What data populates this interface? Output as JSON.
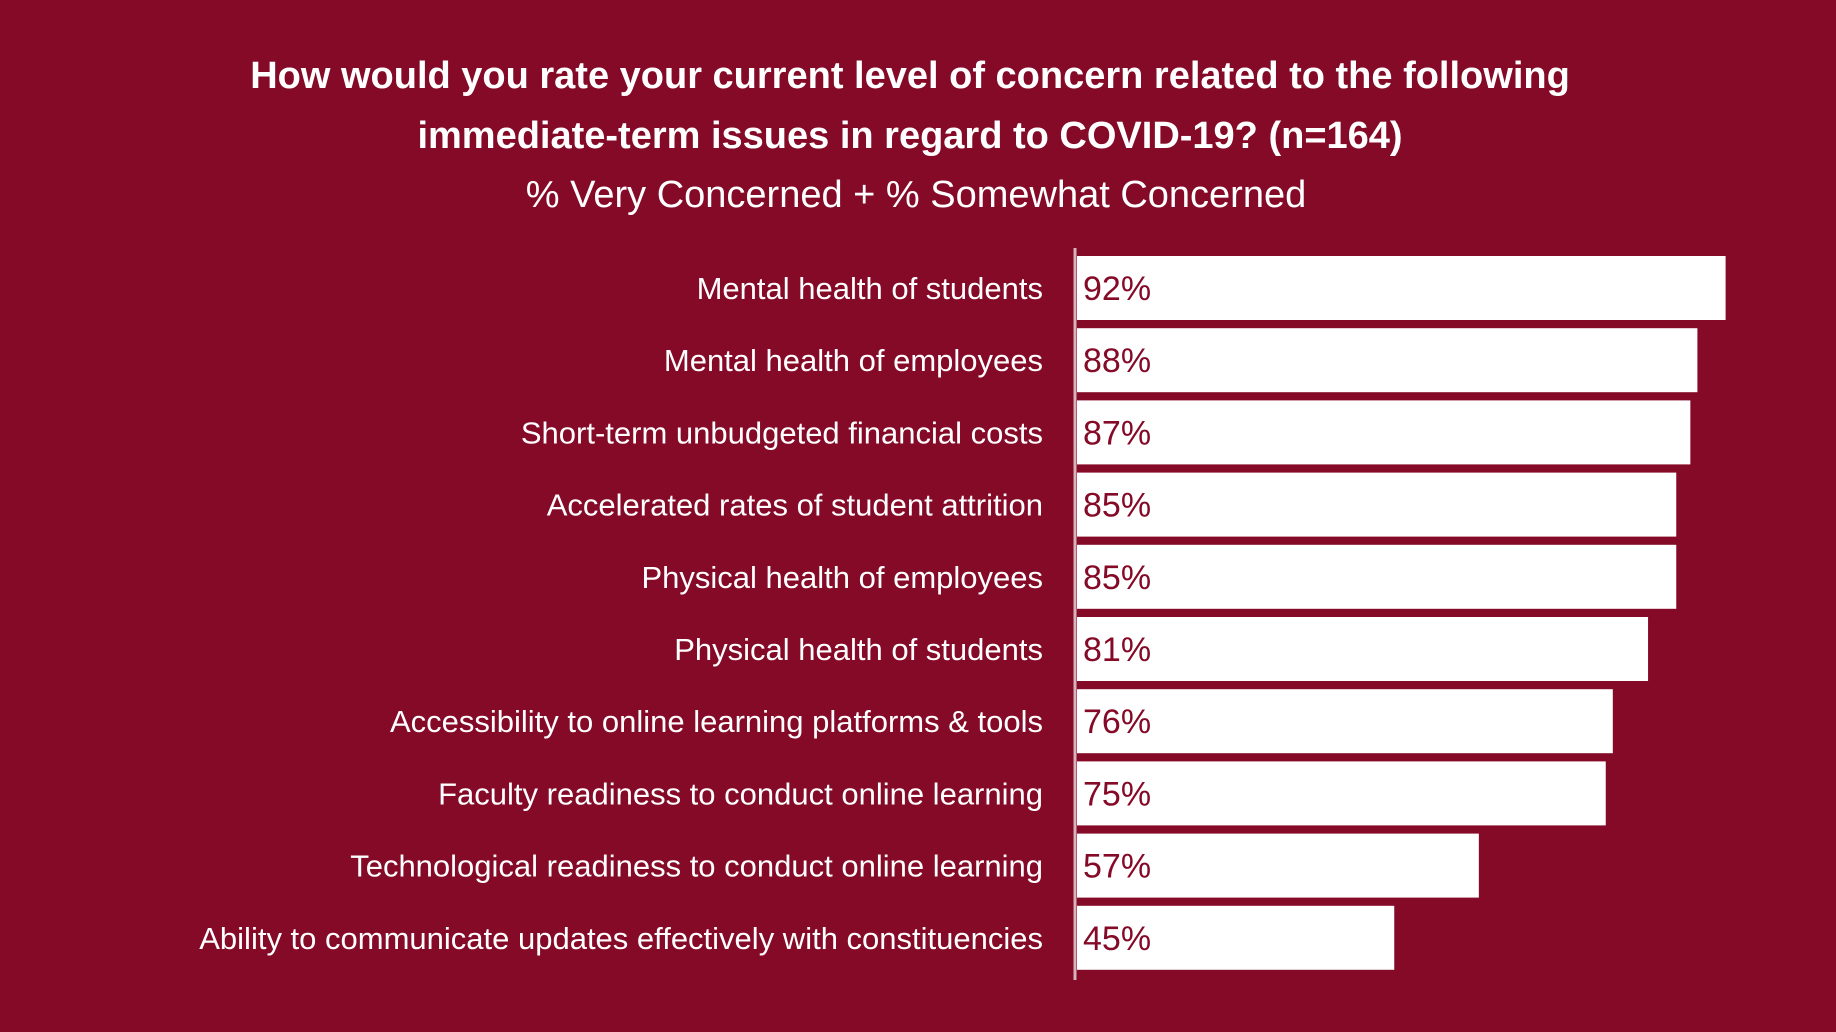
{
  "chart_data": {
    "type": "bar",
    "orientation": "horizontal",
    "title_lines": [
      "How would you rate your current level of concern related to the following",
      "immediate-term issues in regard to COVID-19? (n=164)"
    ],
    "subtitle": "% Very Concerned + % Somewhat Concerned",
    "categories": [
      "Mental health of students",
      "Mental health of employees",
      "Short-term unbudgeted financial costs",
      "Accelerated rates of student attrition",
      "Physical health of employees",
      "Physical health of students",
      "Accessibility to online learning platforms & tools",
      "Faculty readiness to conduct online learning",
      "Technological readiness to conduct online learning",
      "Ability to communicate updates effectively with constituencies"
    ],
    "values": [
      92,
      88,
      87,
      85,
      85,
      81,
      76,
      75,
      57,
      45
    ],
    "value_labels": [
      "92%",
      "88%",
      "87%",
      "85%",
      "85%",
      "81%",
      "76%",
      "75%",
      "57%",
      "45%"
    ],
    "xlim": [
      0,
      100
    ],
    "grid": false,
    "legend": "none",
    "colors": {
      "background": "#840a27",
      "bar": "#ffffff",
      "value_text": "#840a27",
      "label_text": "#ffffff",
      "axis_line": "#d9b3bc"
    }
  }
}
